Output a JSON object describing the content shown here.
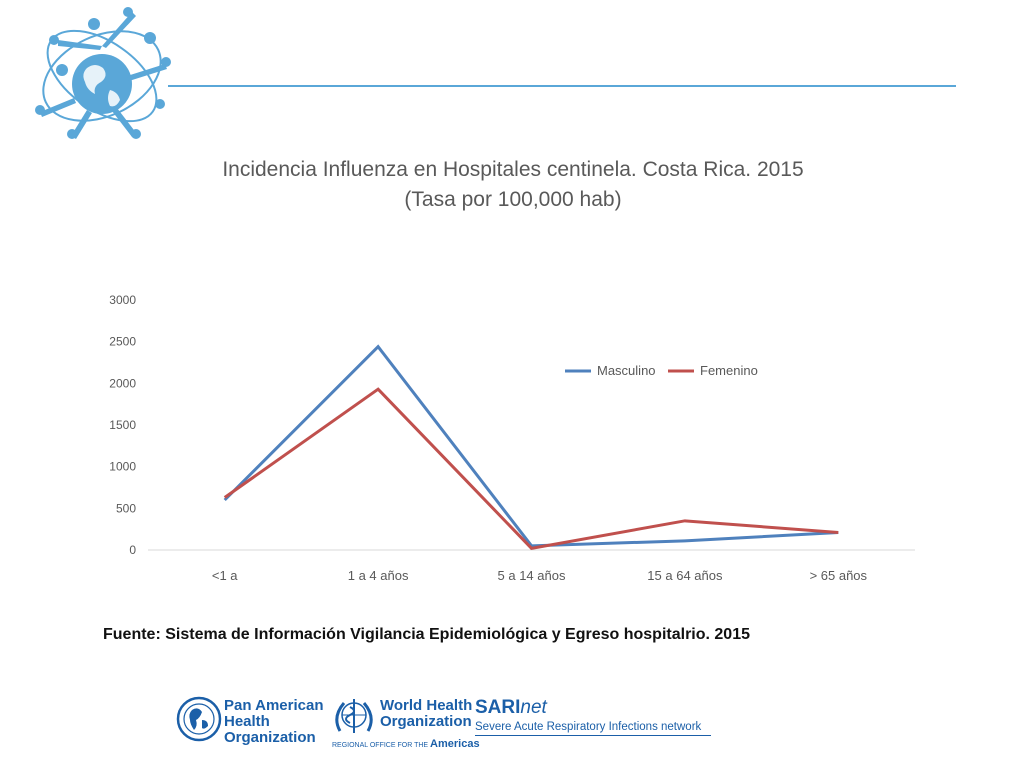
{
  "chart_data": {
    "type": "line",
    "title": "Incidencia Influenza en Hospitales centinela. Costa Rica. 2015",
    "subtitle": "(Tasa por 100,000 hab)",
    "categories": [
      "<1 a",
      "1 a 4 años",
      "5 a 14 años",
      "15 a 64 años",
      "> 65 años"
    ],
    "y_ticks": [
      "3000",
      "2500",
      "2000",
      "1500",
      "1000",
      "500",
      "0"
    ],
    "ylim": [
      0,
      3000
    ],
    "grid": false,
    "legend_position": "top-right",
    "series": [
      {
        "name": "Masculino",
        "values": [
          600,
          2440,
          50,
          110,
          210
        ],
        "color": "#4f81bd"
      },
      {
        "name": "Femenino",
        "values": [
          630,
          1930,
          20,
          350,
          210
        ],
        "color": "#c0504d"
      }
    ]
  },
  "source_note": "Fuente: Sistema de Información  Vigilancia Epidemiológica y Egreso hospitalrio. 2015",
  "footer": {
    "paho": {
      "line1": "Pan American",
      "line2": "Health",
      "line3": "Organization"
    },
    "who": {
      "line1": "World Health",
      "line2": "Organization",
      "regional": "REGIONAL OFFICE FOR THE",
      "region": "Americas"
    },
    "sari": {
      "bold": "SARI",
      "italic": "net",
      "subtitle": "Severe Acute Respiratory Infections network"
    }
  },
  "colors": {
    "accent": "#5aa7d8",
    "footer_blue": "#1b5fa8"
  }
}
